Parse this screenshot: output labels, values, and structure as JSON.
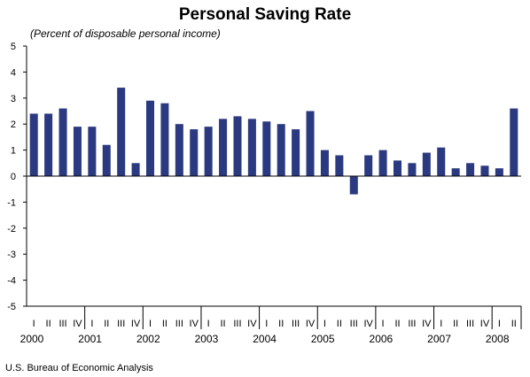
{
  "chart_data": {
    "type": "bar",
    "title": "Personal Saving Rate",
    "subtitle": "(Percent of disposable personal income)",
    "source": "U.S. Bureau of Economic Analysis",
    "xlabel": "",
    "ylabel": "",
    "ylim": [
      -5,
      5
    ],
    "yticks": [
      "5",
      "4",
      "3",
      "2",
      "1",
      "0",
      "-1",
      "-2",
      "-3",
      "-4",
      "-5"
    ],
    "grid": false,
    "legend": "none",
    "bar_color": "#2b3a80",
    "categories": [
      "I",
      "II",
      "III",
      "IV",
      "I",
      "II",
      "III",
      "IV",
      "I",
      "II",
      "III",
      "IV",
      "I",
      "II",
      "III",
      "IV",
      "I",
      "II",
      "III",
      "IV",
      "I",
      "II",
      "III",
      "IV",
      "I",
      "II",
      "III",
      "IV",
      "I",
      "II",
      "III",
      "IV",
      "I",
      "II"
    ],
    "years": [
      {
        "label": "2000",
        "start": 0
      },
      {
        "label": "2001",
        "start": 4
      },
      {
        "label": "2002",
        "start": 8
      },
      {
        "label": "2003",
        "start": 12
      },
      {
        "label": "2004",
        "start": 16
      },
      {
        "label": "2005",
        "start": 20
      },
      {
        "label": "2006",
        "start": 24
      },
      {
        "label": "2007",
        "start": 28
      },
      {
        "label": "2008",
        "start": 32
      }
    ],
    "values": [
      2.4,
      2.4,
      2.6,
      1.9,
      1.9,
      1.2,
      3.4,
      0.5,
      2.9,
      2.8,
      2.0,
      1.8,
      1.9,
      2.2,
      2.3,
      2.2,
      2.1,
      2.0,
      1.8,
      2.5,
      1.0,
      0.8,
      -0.7,
      0.8,
      1.0,
      0.6,
      0.5,
      0.9,
      1.1,
      0.3,
      0.5,
      0.4,
      0.3,
      2.6
    ]
  }
}
